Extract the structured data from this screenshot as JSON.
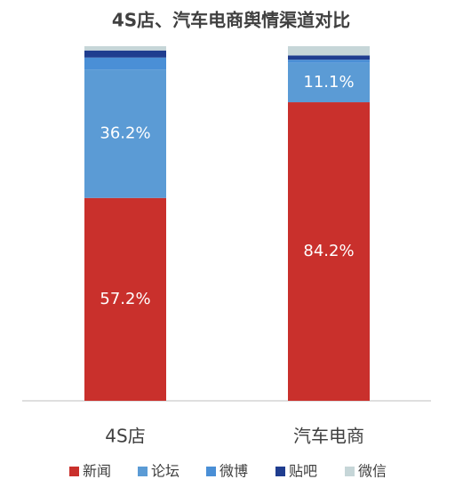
{
  "chart_data": {
    "type": "stacked_bar",
    "title": "4S店、汽车电商舆情渠道对比",
    "categories": [
      "4S店",
      "汽车电商"
    ],
    "ylim": [
      0,
      100
    ],
    "series": [
      {
        "name": "新闻",
        "color": "#c9302c",
        "values": [
          57.2,
          84.2
        ],
        "value_labels": [
          "57.2%",
          "84.2%"
        ]
      },
      {
        "name": "论坛",
        "color": "#5b9bd5",
        "values": [
          36.2,
          11.1
        ],
        "value_labels": [
          "36.2%",
          "11.1%"
        ]
      },
      {
        "name": "微博",
        "color": "#4a8fd6",
        "values": [
          3.4,
          0.9
        ]
      },
      {
        "name": "贴吧",
        "color": "#1f3d8f",
        "values": [
          2.0,
          1.2
        ]
      },
      {
        "name": "微信",
        "color": "#c6d6d8",
        "values": [
          1.2,
          2.6
        ]
      }
    ]
  }
}
